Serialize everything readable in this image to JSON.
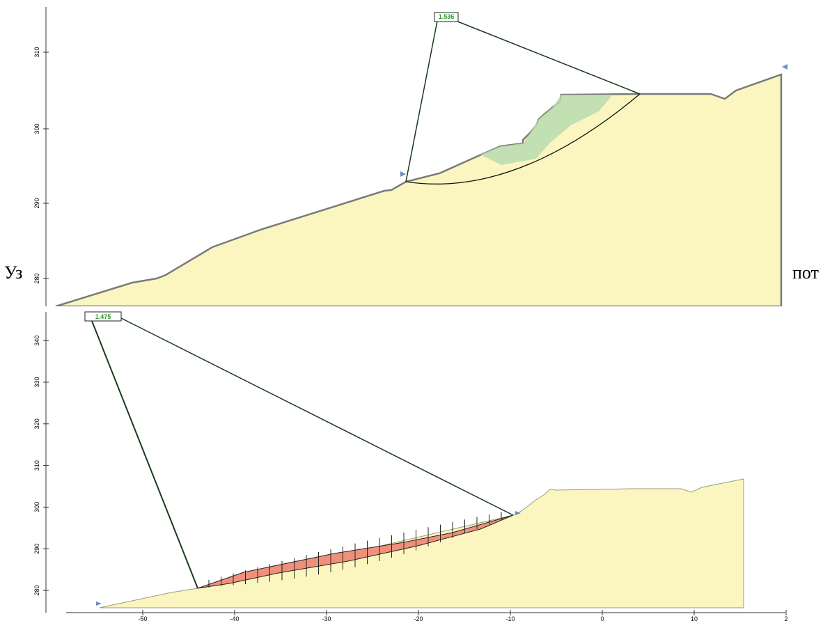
{
  "document": {
    "text_left": "Уз",
    "text_right": "пот",
    "top_figure": {
      "factor_of_safety": "1.536",
      "y_tick_labels": [
        "280",
        "290",
        "300",
        "310"
      ]
    },
    "bottom_figure": {
      "factor_of_safety": "1.475",
      "y_tick_labels": [
        "280",
        "290",
        "300",
        "310",
        "320",
        "330",
        "340"
      ],
      "x_tick_labels": [
        "-50",
        "-40",
        "-30",
        "-20",
        "-10",
        "0",
        "10",
        "2"
      ]
    }
  }
}
